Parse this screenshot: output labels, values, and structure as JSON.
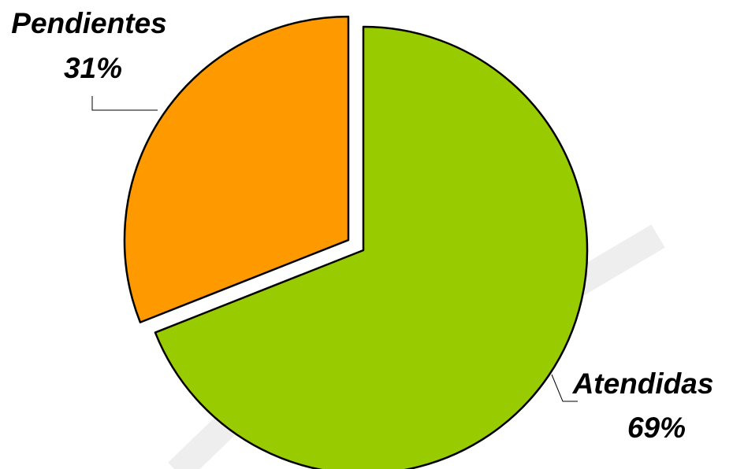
{
  "chart_data": {
    "type": "pie",
    "slices": [
      {
        "label": "Atendidas",
        "value": 69,
        "value_label": "69%",
        "color": "#99cc00",
        "exploded": false
      },
      {
        "label": "Pendientes",
        "value": 31,
        "value_label": "31%",
        "color": "#ff9900",
        "exploded": true
      }
    ],
    "start_angle": "12 o'clock",
    "direction": "clockwise",
    "legend": "none"
  }
}
